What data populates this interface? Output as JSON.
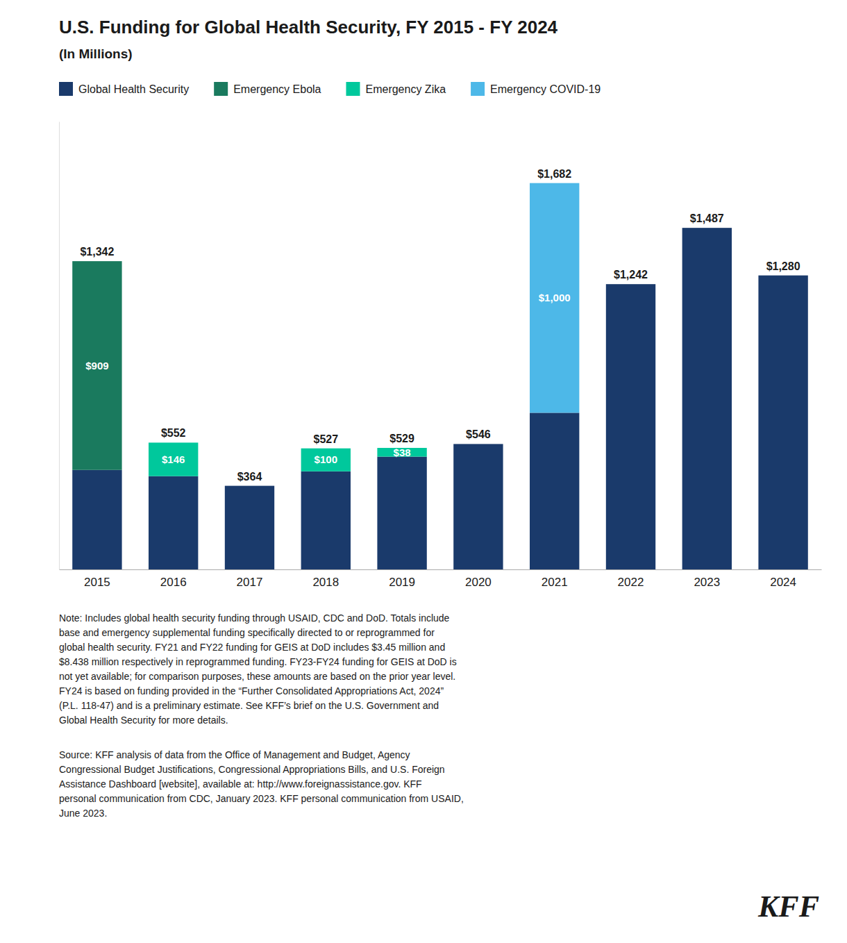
{
  "chart_data": {
    "type": "bar",
    "stacked": true,
    "data_labels": true,
    "tick_labels": "x",
    "legend": "top-left",
    "title": "U.S. Funding for Global Health Security, FY 2015 - FY 2024",
    "subtitle": "(In Millions)",
    "categories": [
      "2015",
      "2016",
      "2017",
      "2018",
      "2019",
      "2020",
      "2021",
      "2022",
      "2023",
      "2024"
    ],
    "series": [
      {
        "name": "Global Health Security",
        "color": "#1a3a6b",
        "values": [
          433,
          406,
          364,
          427,
          491,
          546,
          682,
          1242,
          1487,
          1280
        ]
      },
      {
        "name": "Emergency Ebola",
        "color": "#1a7a5e",
        "values": [
          909,
          0,
          0,
          0,
          0,
          0,
          0,
          0,
          0,
          0
        ],
        "value_labels": [
          "$909",
          null,
          null,
          null,
          null,
          null,
          null,
          null,
          null,
          null
        ]
      },
      {
        "name": "Emergency Zika",
        "color": "#00c89c",
        "values": [
          0,
          146,
          0,
          100,
          38,
          0,
          0,
          0,
          0,
          0
        ],
        "value_labels": [
          null,
          "$146",
          null,
          "$100",
          "$38",
          null,
          null,
          null,
          null,
          null
        ]
      },
      {
        "name": "Emergency COVID-19",
        "color": "#4db8e8",
        "values": [
          0,
          0,
          0,
          0,
          0,
          0,
          1000,
          0,
          0,
          0
        ],
        "value_labels": [
          null,
          null,
          null,
          null,
          null,
          null,
          "$1,000",
          null,
          null,
          null
        ]
      }
    ],
    "totals": [
      1342,
      552,
      364,
      527,
      529,
      546,
      1682,
      1242,
      1487,
      1280
    ],
    "total_labels": [
      "$1,342",
      "$552",
      "$364",
      "$527",
      "$529",
      "$546",
      "$1,682",
      "$1,242",
      "$1,487",
      "$1,280"
    ],
    "ylim": [
      0,
      1950
    ],
    "note": "Note: Includes global health security funding through USAID, CDC and DoD. Totals include\nbase and emergency supplemental funding specifically directed to or reprogrammed for\nglobal health security. FY21 and FY22 funding for GEIS at DoD includes $3.45 million and\n$8.438 million respectively in reprogrammed funding. FY23-FY24 funding for GEIS at DoD is\nnot yet available; for comparison purposes, these amounts are based on the prior year level.\nFY24 is based on funding provided in the “Further Consolidated Appropriations Act, 2024”\n(P.L. 118-47) and is a preliminary estimate. See KFF’s brief on the U.S. Government and\nGlobal Health Security for more details.",
    "source": "Source: KFF analysis of data from the Office of Management and Budget, Agency\nCongressional Budget Justifications, Congressional Appropriations Bills, and U.S. Foreign\nAssistance Dashboard [website], available at: http://www.foreignassistance.gov. KFF\npersonal communication from CDC, January 2023. KFF personal communication from USAID,\nJune 2023.",
    "logo": "KFF"
  }
}
